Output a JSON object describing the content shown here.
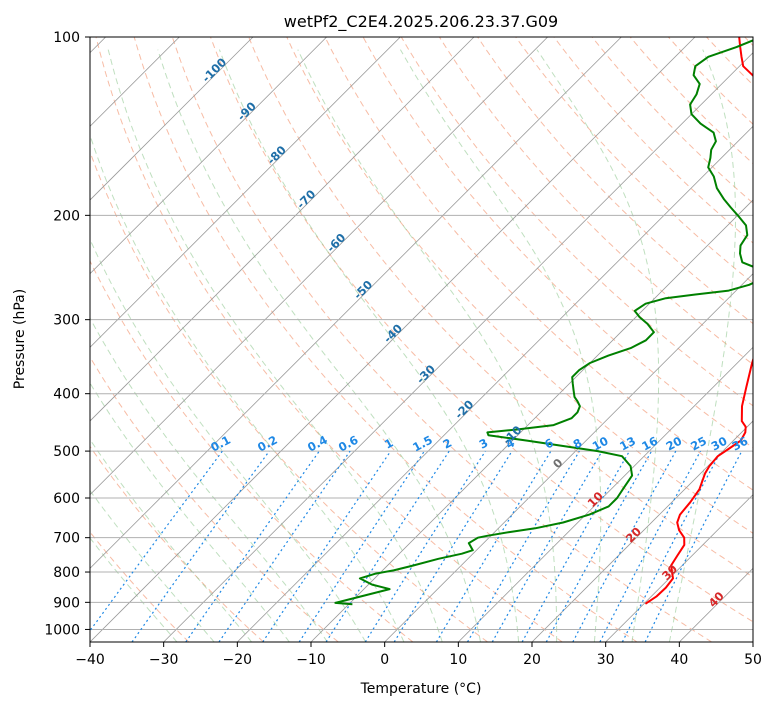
{
  "chart_data": {
    "type": "line",
    "title": "wetPf2_C2E4.2025.206.23.37.G09",
    "xlabel": "Temperature (°C)",
    "ylabel": "Pressure (hPa)",
    "xlim": [
      -40,
      50
    ],
    "ylim": [
      1050,
      100
    ],
    "y_scale": "log",
    "grid": true,
    "x_ticks": [
      "−40",
      "−30",
      "−20",
      "−10",
      "0",
      "10",
      "20",
      "30",
      "40",
      "50"
    ],
    "y_ticks": [
      {
        "p": 100,
        "label": "100"
      },
      {
        "p": 200,
        "label": "200"
      },
      {
        "p": 300,
        "label": "300"
      },
      {
        "p": 400,
        "label": "400"
      },
      {
        "p": 500,
        "label": "500"
      },
      {
        "p": 600,
        "label": "600"
      },
      {
        "p": 700,
        "label": "700"
      },
      {
        "p": 800,
        "label": "800"
      },
      {
        "p": 900,
        "label": "900"
      },
      {
        "p": 1000,
        "label": "1000"
      }
    ],
    "isotherm_labels": [
      {
        "t": -100,
        "p": 115,
        "label": "-100"
      },
      {
        "t": -90,
        "p": 135,
        "label": "-90"
      },
      {
        "t": -80,
        "p": 160,
        "label": "-80"
      },
      {
        "t": -70,
        "p": 190,
        "label": "-70"
      },
      {
        "t": -60,
        "p": 225,
        "label": "-60"
      },
      {
        "t": -50,
        "p": 270,
        "label": "-50"
      },
      {
        "t": -40,
        "p": 320,
        "label": "-40"
      },
      {
        "t": -30,
        "p": 375,
        "label": "-30"
      },
      {
        "t": -20,
        "p": 430,
        "label": "-20"
      },
      {
        "t": -10,
        "p": 475,
        "label": "-10"
      },
      {
        "t": 0,
        "p": 530,
        "label": "0"
      },
      {
        "t": 10,
        "p": 610,
        "label": "10"
      },
      {
        "t": 20,
        "p": 700,
        "label": "20"
      },
      {
        "t": 30,
        "p": 810,
        "label": "30"
      },
      {
        "t": 40,
        "p": 900,
        "label": "40"
      }
    ],
    "mixing_ratio_labels": [
      "0.1",
      "0.2",
      "0.4",
      "0.6",
      "1",
      "1.5",
      "2",
      "3",
      "4",
      "6",
      "8",
      "10",
      "13",
      "16",
      "20",
      "25",
      "30",
      "36"
    ],
    "series": [
      {
        "role": "temperature",
        "color": "#ff0000",
        "points": [
          [
            30.2,
            905
          ],
          [
            30.7,
            880
          ],
          [
            30.8,
            850
          ],
          [
            30.5,
            820
          ],
          [
            29.5,
            800
          ],
          [
            28.5,
            780
          ],
          [
            28.0,
            750
          ],
          [
            27.5,
            720
          ],
          [
            26.5,
            700
          ],
          [
            24.8,
            680
          ],
          [
            23.5,
            660
          ],
          [
            22.8,
            640
          ],
          [
            22.5,
            610
          ],
          [
            22.0,
            580
          ],
          [
            21.2,
            560
          ],
          [
            20.6,
            545
          ],
          [
            20.2,
            530
          ],
          [
            20.0,
            510
          ],
          [
            20.5,
            495
          ],
          [
            21.0,
            480
          ],
          [
            20.5,
            465
          ],
          [
            19.8,
            455
          ],
          [
            18.5,
            445
          ],
          [
            16.5,
            420
          ],
          [
            14.5,
            390
          ],
          [
            12.0,
            355
          ],
          [
            9.5,
            320
          ],
          [
            8.0,
            300
          ],
          [
            4.5,
            270
          ],
          [
            2.0,
            245
          ],
          [
            0.5,
            230
          ],
          [
            -1.0,
            215
          ],
          [
            -3.0,
            200
          ],
          [
            -5.5,
            185
          ],
          [
            -8.0,
            172
          ],
          [
            -10.5,
            162
          ],
          [
            -12.5,
            156
          ],
          [
            -13.5,
            150
          ],
          [
            -14.5,
            144
          ],
          [
            -16.0,
            138
          ],
          [
            -18.0,
            133
          ],
          [
            -20.0,
            128
          ],
          [
            -22.0,
            124
          ],
          [
            -24.5,
            120
          ],
          [
            -27.0,
            116
          ],
          [
            -29.5,
            112
          ],
          [
            -31.0,
            108
          ],
          [
            -32.5,
            104
          ],
          [
            -34.0,
            100
          ]
        ]
      },
      {
        "role": "dewpoint",
        "color": "#008000",
        "points": [
          [
            -9.5,
            907
          ],
          [
            -12.0,
            902
          ],
          [
            -9.5,
            880
          ],
          [
            -6.5,
            855
          ],
          [
            -9.5,
            840
          ],
          [
            -12.0,
            820
          ],
          [
            -10.5,
            805
          ],
          [
            -8.5,
            795
          ],
          [
            -6.5,
            780
          ],
          [
            -4.0,
            760
          ],
          [
            -1.5,
            745
          ],
          [
            -0.5,
            735
          ],
          [
            -2.0,
            715
          ],
          [
            -1.5,
            700
          ],
          [
            -0.5,
            695
          ],
          [
            2.0,
            685
          ],
          [
            5.0,
            675
          ],
          [
            8.0,
            660
          ],
          [
            10.5,
            640
          ],
          [
            12.0,
            620
          ],
          [
            12.0,
            600
          ],
          [
            11.5,
            575
          ],
          [
            11.0,
            550
          ],
          [
            9.5,
            530
          ],
          [
            7.0,
            510
          ],
          [
            3.0,
            500
          ],
          [
            -2.5,
            490
          ],
          [
            -8.0,
            480
          ],
          [
            -14.0,
            470
          ],
          [
            -14.5,
            465
          ],
          [
            -11.0,
            460
          ],
          [
            -6.5,
            452
          ],
          [
            -5.0,
            440
          ],
          [
            -5.0,
            430
          ],
          [
            -5.5,
            420
          ],
          [
            -6.5,
            412
          ],
          [
            -7.5,
            405
          ],
          [
            -8.5,
            395
          ],
          [
            -9.5,
            385
          ],
          [
            -10.5,
            375
          ],
          [
            -10.5,
            365
          ],
          [
            -10.0,
            355
          ],
          [
            -8.5,
            345
          ],
          [
            -6.5,
            335
          ],
          [
            -5.5,
            325
          ],
          [
            -5.5,
            315
          ],
          [
            -7.5,
            305
          ],
          [
            -9.5,
            297
          ],
          [
            -11.0,
            290
          ],
          [
            -10.5,
            282
          ],
          [
            -8.5,
            276
          ],
          [
            -5.0,
            272
          ],
          [
            -1.0,
            268
          ],
          [
            1.0,
            262
          ],
          [
            2.0,
            255
          ],
          [
            2.0,
            250
          ],
          [
            -0.5,
            245
          ],
          [
            -3.0,
            240
          ],
          [
            -4.5,
            232
          ],
          [
            -5.5,
            225
          ],
          [
            -6.0,
            216
          ],
          [
            -7.5,
            208
          ],
          [
            -10.0,
            200
          ],
          [
            -12.0,
            194
          ],
          [
            -14.0,
            188
          ],
          [
            -16.5,
            180
          ],
          [
            -18.5,
            172
          ],
          [
            -20.5,
            166
          ],
          [
            -21.5,
            160
          ],
          [
            -22.5,
            155
          ],
          [
            -23.0,
            150
          ],
          [
            -24.5,
            145
          ],
          [
            -27.5,
            140
          ],
          [
            -30.0,
            135
          ],
          [
            -31.5,
            130
          ],
          [
            -32.0,
            125
          ],
          [
            -33.0,
            120
          ],
          [
            -35.0,
            116
          ],
          [
            -36.0,
            112
          ],
          [
            -35.5,
            108
          ],
          [
            -33.0,
            104
          ],
          [
            -31.0,
            100
          ]
        ]
      }
    ]
  }
}
